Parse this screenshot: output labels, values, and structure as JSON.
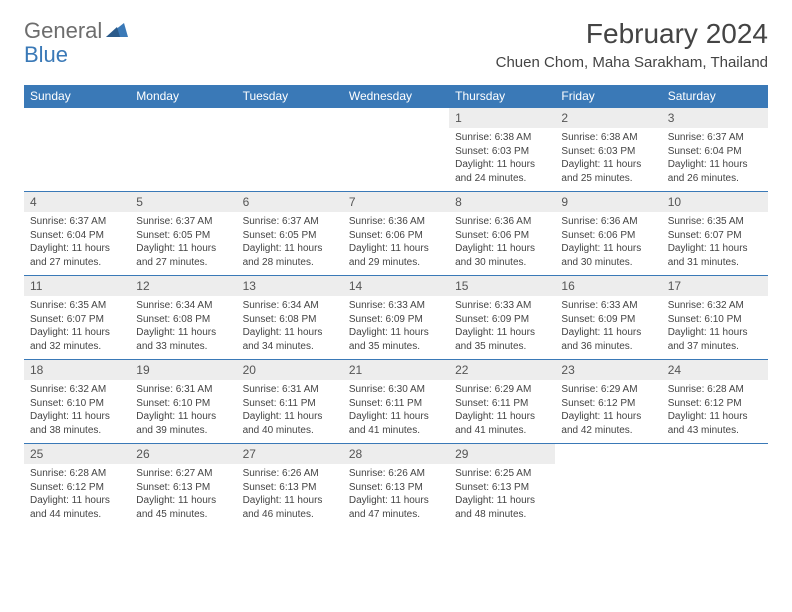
{
  "brand": {
    "part1": "General",
    "part2": "Blue"
  },
  "title": "February 2024",
  "location": "Chuen Chom, Maha Sarakham, Thailand",
  "colors": {
    "header_bg": "#3a79b7",
    "header_text": "#ffffff",
    "daynum_bg": "#ededed",
    "border": "#3a79b7",
    "body_text": "#444444",
    "logo_gray": "#6d6d6d",
    "logo_blue": "#3a79b7",
    "page_bg": "#ffffff"
  },
  "typography": {
    "title_fontsize": 28,
    "location_fontsize": 15,
    "dayheader_fontsize": 12,
    "daynum_fontsize": 12,
    "detail_fontsize": 10
  },
  "day_headers": [
    "Sunday",
    "Monday",
    "Tuesday",
    "Wednesday",
    "Thursday",
    "Friday",
    "Saturday"
  ],
  "weeks": [
    [
      null,
      null,
      null,
      null,
      {
        "n": "1",
        "sr": "6:38 AM",
        "ss": "6:03 PM",
        "dl": "11 hours and 24 minutes."
      },
      {
        "n": "2",
        "sr": "6:38 AM",
        "ss": "6:03 PM",
        "dl": "11 hours and 25 minutes."
      },
      {
        "n": "3",
        "sr": "6:37 AM",
        "ss": "6:04 PM",
        "dl": "11 hours and 26 minutes."
      }
    ],
    [
      {
        "n": "4",
        "sr": "6:37 AM",
        "ss": "6:04 PM",
        "dl": "11 hours and 27 minutes."
      },
      {
        "n": "5",
        "sr": "6:37 AM",
        "ss": "6:05 PM",
        "dl": "11 hours and 27 minutes."
      },
      {
        "n": "6",
        "sr": "6:37 AM",
        "ss": "6:05 PM",
        "dl": "11 hours and 28 minutes."
      },
      {
        "n": "7",
        "sr": "6:36 AM",
        "ss": "6:06 PM",
        "dl": "11 hours and 29 minutes."
      },
      {
        "n": "8",
        "sr": "6:36 AM",
        "ss": "6:06 PM",
        "dl": "11 hours and 30 minutes."
      },
      {
        "n": "9",
        "sr": "6:36 AM",
        "ss": "6:06 PM",
        "dl": "11 hours and 30 minutes."
      },
      {
        "n": "10",
        "sr": "6:35 AM",
        "ss": "6:07 PM",
        "dl": "11 hours and 31 minutes."
      }
    ],
    [
      {
        "n": "11",
        "sr": "6:35 AM",
        "ss": "6:07 PM",
        "dl": "11 hours and 32 minutes."
      },
      {
        "n": "12",
        "sr": "6:34 AM",
        "ss": "6:08 PM",
        "dl": "11 hours and 33 minutes."
      },
      {
        "n": "13",
        "sr": "6:34 AM",
        "ss": "6:08 PM",
        "dl": "11 hours and 34 minutes."
      },
      {
        "n": "14",
        "sr": "6:33 AM",
        "ss": "6:09 PM",
        "dl": "11 hours and 35 minutes."
      },
      {
        "n": "15",
        "sr": "6:33 AM",
        "ss": "6:09 PM",
        "dl": "11 hours and 35 minutes."
      },
      {
        "n": "16",
        "sr": "6:33 AM",
        "ss": "6:09 PM",
        "dl": "11 hours and 36 minutes."
      },
      {
        "n": "17",
        "sr": "6:32 AM",
        "ss": "6:10 PM",
        "dl": "11 hours and 37 minutes."
      }
    ],
    [
      {
        "n": "18",
        "sr": "6:32 AM",
        "ss": "6:10 PM",
        "dl": "11 hours and 38 minutes."
      },
      {
        "n": "19",
        "sr": "6:31 AM",
        "ss": "6:10 PM",
        "dl": "11 hours and 39 minutes."
      },
      {
        "n": "20",
        "sr": "6:31 AM",
        "ss": "6:11 PM",
        "dl": "11 hours and 40 minutes."
      },
      {
        "n": "21",
        "sr": "6:30 AM",
        "ss": "6:11 PM",
        "dl": "11 hours and 41 minutes."
      },
      {
        "n": "22",
        "sr": "6:29 AM",
        "ss": "6:11 PM",
        "dl": "11 hours and 41 minutes."
      },
      {
        "n": "23",
        "sr": "6:29 AM",
        "ss": "6:12 PM",
        "dl": "11 hours and 42 minutes."
      },
      {
        "n": "24",
        "sr": "6:28 AM",
        "ss": "6:12 PM",
        "dl": "11 hours and 43 minutes."
      }
    ],
    [
      {
        "n": "25",
        "sr": "6:28 AM",
        "ss": "6:12 PM",
        "dl": "11 hours and 44 minutes."
      },
      {
        "n": "26",
        "sr": "6:27 AM",
        "ss": "6:13 PM",
        "dl": "11 hours and 45 minutes."
      },
      {
        "n": "27",
        "sr": "6:26 AM",
        "ss": "6:13 PM",
        "dl": "11 hours and 46 minutes."
      },
      {
        "n": "28",
        "sr": "6:26 AM",
        "ss": "6:13 PM",
        "dl": "11 hours and 47 minutes."
      },
      {
        "n": "29",
        "sr": "6:25 AM",
        "ss": "6:13 PM",
        "dl": "11 hours and 48 minutes."
      },
      null,
      null
    ]
  ],
  "labels": {
    "sunrise": "Sunrise:",
    "sunset": "Sunset:",
    "daylight": "Daylight:"
  }
}
